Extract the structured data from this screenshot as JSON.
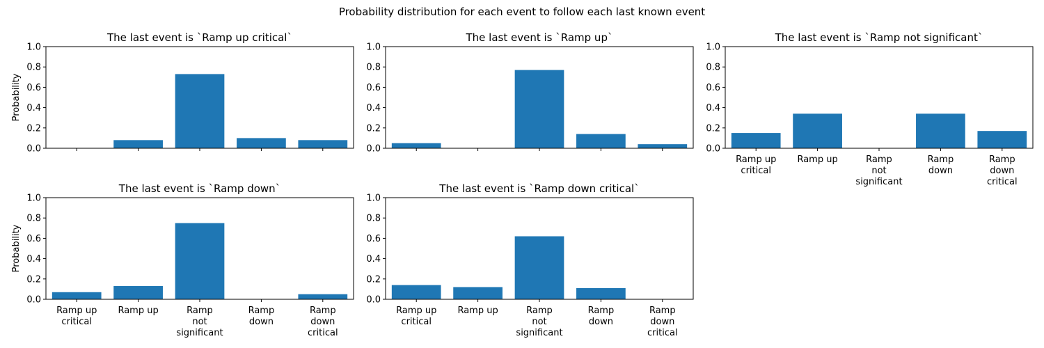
{
  "figure_title": "Probability distribution for each event to follow each last known event",
  "colors": {
    "bar": "#1f77b4",
    "axis": "#000000",
    "background": "#ffffff"
  },
  "chart_data": [
    {
      "type": "bar",
      "title": "The last event is `Ramp up critical`",
      "ylabel": "Probability",
      "ylim": [
        0,
        1
      ],
      "yticks": [
        "0.0",
        "0.2",
        "0.4",
        "0.6",
        "0.8",
        "1.0"
      ],
      "categories": [
        "Ramp up critical",
        "Ramp up",
        "Ramp not significant",
        "Ramp down",
        "Ramp down critical"
      ],
      "category_tick_labels": [],
      "values": [
        0.0,
        0.08,
        0.73,
        0.1,
        0.08
      ]
    },
    {
      "type": "bar",
      "title": "The last event is `Ramp up`",
      "ylabel": "",
      "ylim": [
        0,
        1
      ],
      "yticks": [
        "0.0",
        "0.2",
        "0.4",
        "0.6",
        "0.8",
        "1.0"
      ],
      "categories": [
        "Ramp up critical",
        "Ramp up",
        "Ramp not significant",
        "Ramp down",
        "Ramp down critical"
      ],
      "category_tick_labels": [],
      "values": [
        0.05,
        0.0,
        0.77,
        0.14,
        0.04
      ]
    },
    {
      "type": "bar",
      "title": "The last event is `Ramp not significant`",
      "ylabel": "",
      "ylim": [
        0,
        1
      ],
      "yticks": [
        "0.0",
        "0.2",
        "0.4",
        "0.6",
        "0.8",
        "1.0"
      ],
      "categories": [
        "Ramp up critical",
        "Ramp up",
        "Ramp not significant",
        "Ramp down",
        "Ramp down critical"
      ],
      "category_tick_labels": [
        [
          "Ramp up",
          "critical"
        ],
        [
          "Ramp up"
        ],
        [
          "Ramp",
          "not",
          "significant"
        ],
        [
          "Ramp",
          "down"
        ],
        [
          "Ramp",
          "down",
          "critical"
        ]
      ],
      "values": [
        0.15,
        0.34,
        0.0,
        0.34,
        0.17
      ]
    },
    {
      "type": "bar",
      "title": "The last event is `Ramp down`",
      "ylabel": "Probability",
      "ylim": [
        0,
        1
      ],
      "yticks": [
        "0.0",
        "0.2",
        "0.4",
        "0.6",
        "0.8",
        "1.0"
      ],
      "categories": [
        "Ramp up critical",
        "Ramp up",
        "Ramp not significant",
        "Ramp down",
        "Ramp down critical"
      ],
      "category_tick_labels": [
        [
          "Ramp up",
          "critical"
        ],
        [
          "Ramp up"
        ],
        [
          "Ramp",
          "not",
          "significant"
        ],
        [
          "Ramp",
          "down"
        ],
        [
          "Ramp",
          "down",
          "critical"
        ]
      ],
      "values": [
        0.07,
        0.13,
        0.75,
        0.0,
        0.05
      ]
    },
    {
      "type": "bar",
      "title": "The last event is `Ramp down critical`",
      "ylabel": "",
      "ylim": [
        0,
        1
      ],
      "yticks": [
        "0.0",
        "0.2",
        "0.4",
        "0.6",
        "0.8",
        "1.0"
      ],
      "categories": [
        "Ramp up critical",
        "Ramp up",
        "Ramp not significant",
        "Ramp down",
        "Ramp down critical"
      ],
      "category_tick_labels": [
        [
          "Ramp up",
          "critical"
        ],
        [
          "Ramp up"
        ],
        [
          "Ramp",
          "not",
          "significant"
        ],
        [
          "Ramp",
          "down"
        ],
        [
          "Ramp",
          "down",
          "critical"
        ]
      ],
      "values": [
        0.14,
        0.12,
        0.62,
        0.11,
        0.0
      ]
    }
  ]
}
